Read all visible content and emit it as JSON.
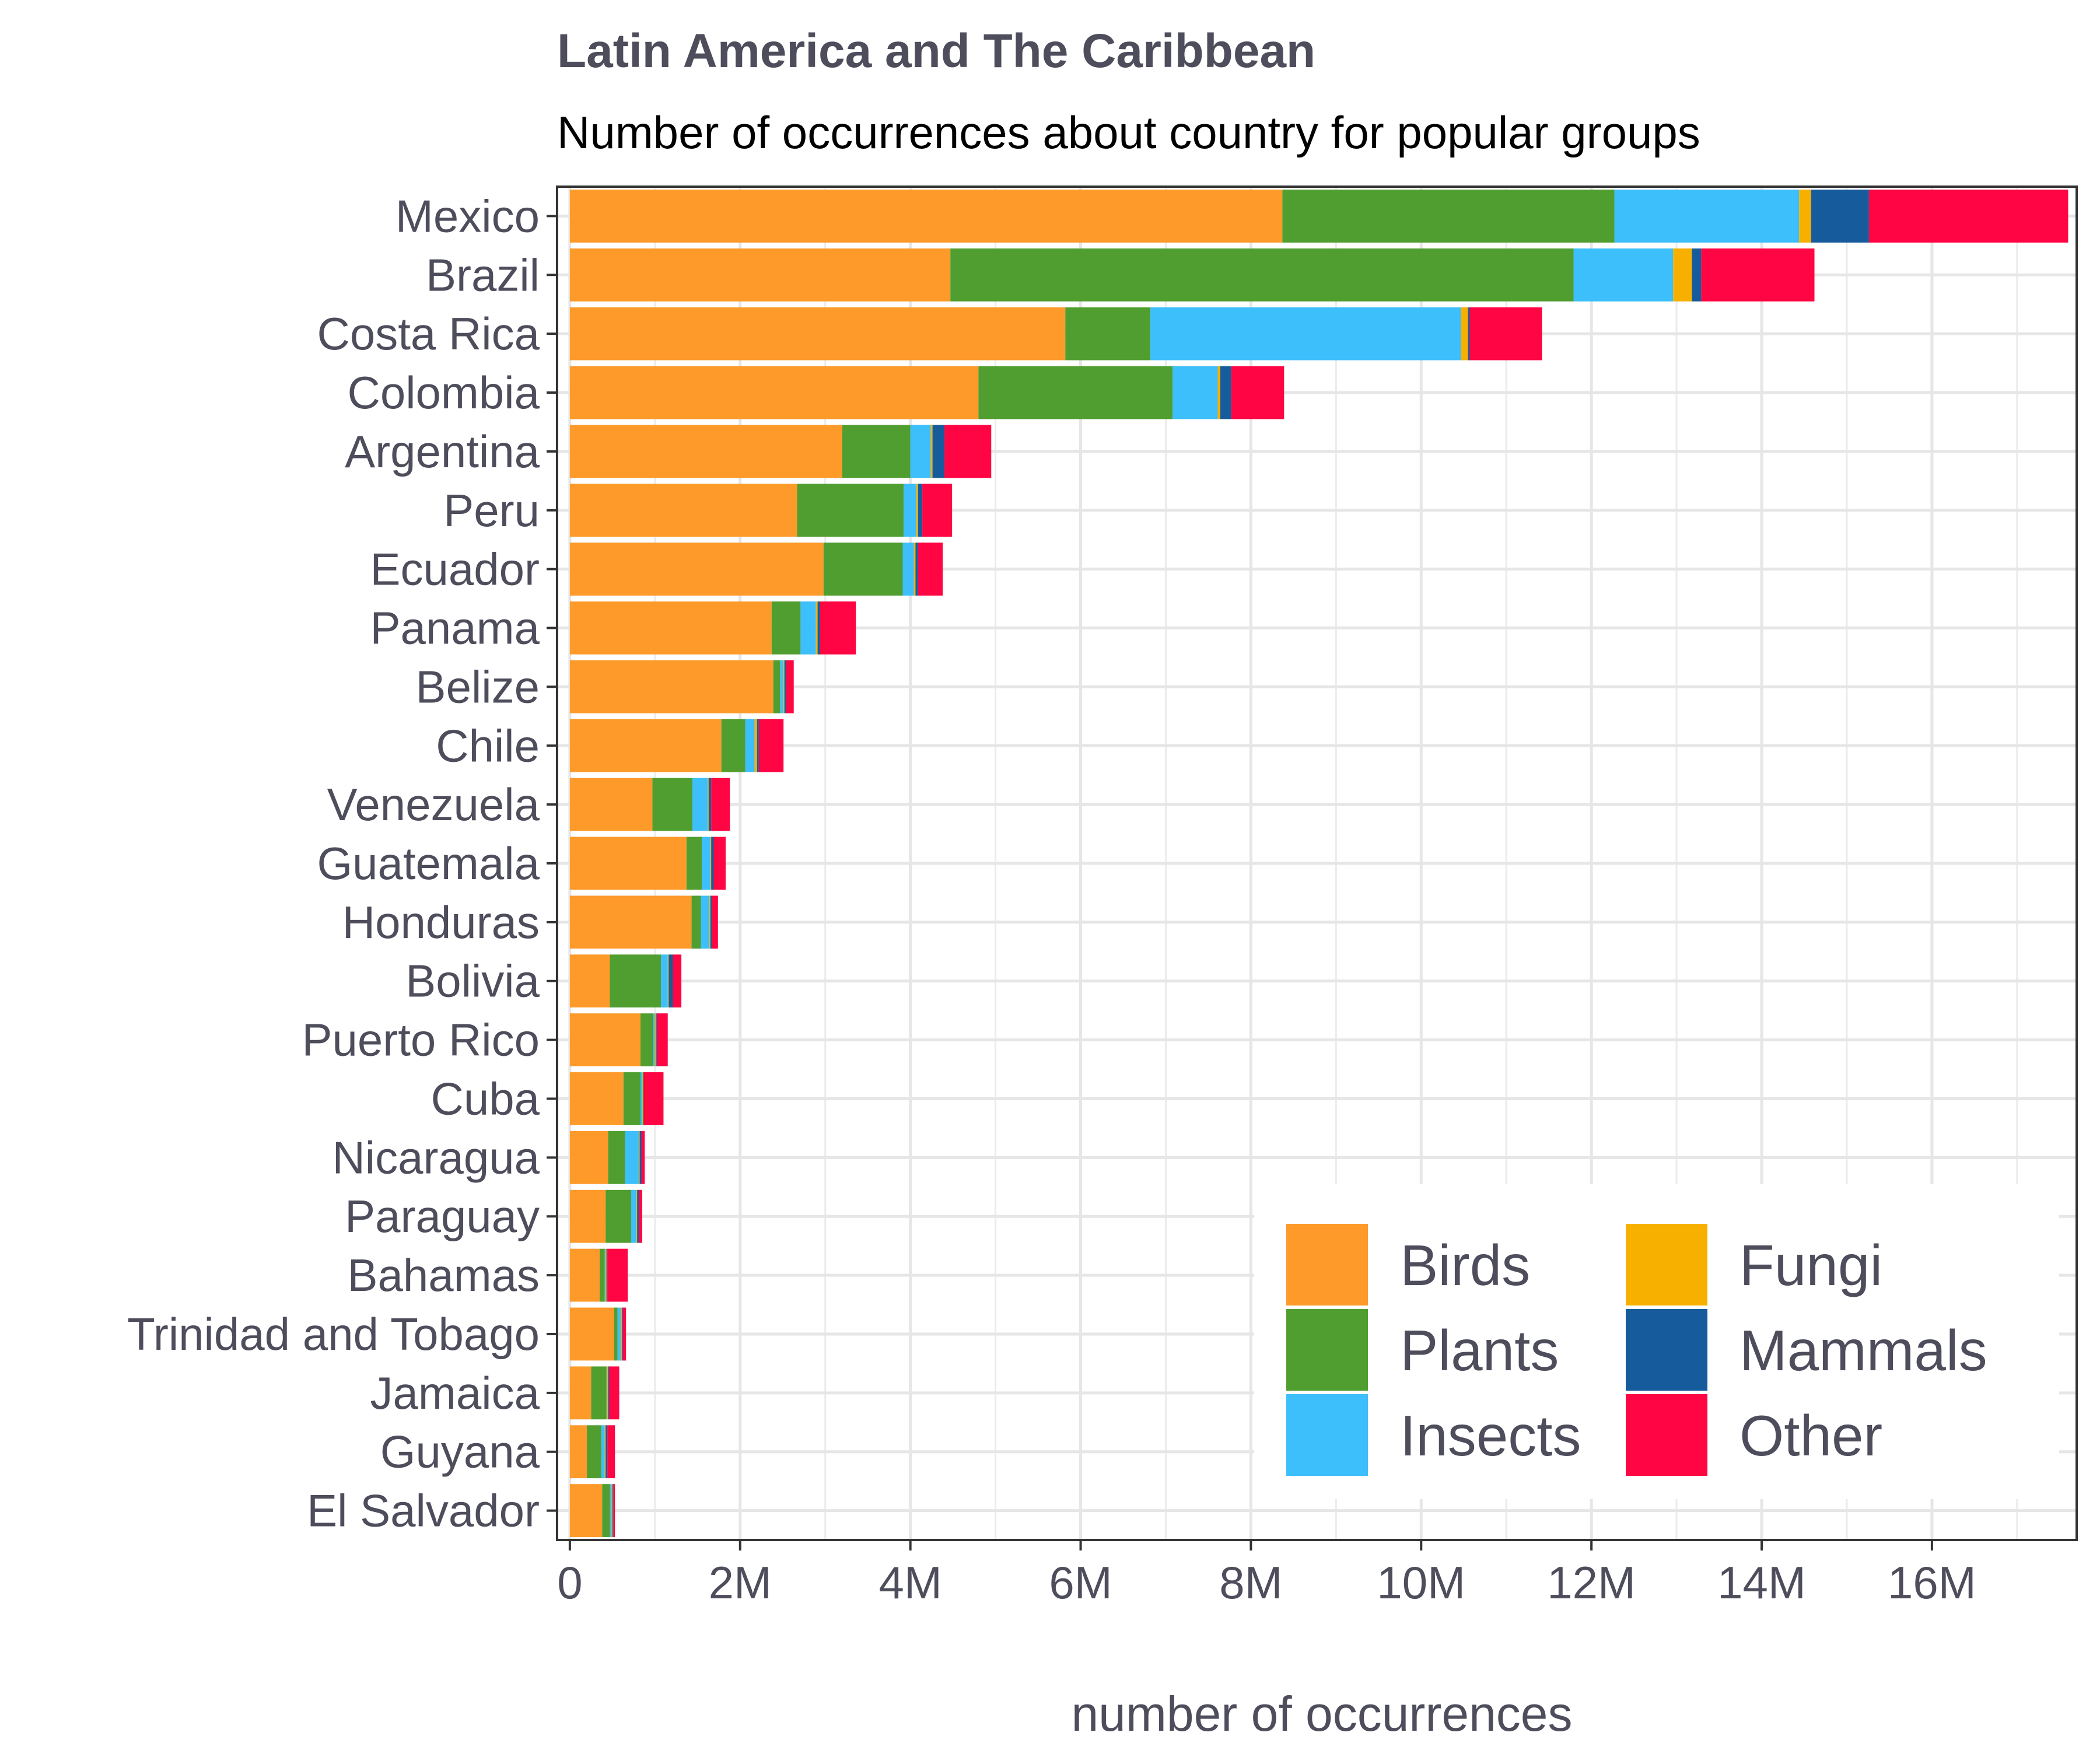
{
  "chart_data": {
    "type": "bar",
    "orientation": "horizontal",
    "stacked": true,
    "title": "Latin America and The Caribbean",
    "subtitle": "Number of occurrences about country for popular groups",
    "xlabel": "number of occurrences",
    "ylabel": "",
    "xlim": [
      -0.15,
      17.7
    ],
    "x_unit": "M",
    "x_ticks": [
      {
        "value": 0,
        "label": "0"
      },
      {
        "value": 2,
        "label": "2M"
      },
      {
        "value": 4,
        "label": "4M"
      },
      {
        "value": 6,
        "label": "6M"
      },
      {
        "value": 8,
        "label": "8M"
      },
      {
        "value": 10,
        "label": "10M"
      },
      {
        "value": 12,
        "label": "12M"
      },
      {
        "value": 14,
        "label": "14M"
      },
      {
        "value": 16,
        "label": "16M"
      }
    ],
    "grid": true,
    "legend_position": "bottom-right",
    "legend_columns": 2,
    "categories": [
      "Mexico",
      "Brazil",
      "Costa Rica",
      "Colombia",
      "Argentina",
      "Peru",
      "Ecuador",
      "Panama",
      "Belize",
      "Chile",
      "Venezuela",
      "Guatemala",
      "Honduras",
      "Bolivia",
      "Puerto Rico",
      "Cuba",
      "Nicaragua",
      "Paraguay",
      "Bahamas",
      "Trinidad and Tobago",
      "Jamaica",
      "Guyana",
      "El Salvador"
    ],
    "series": [
      {
        "name": "Birds",
        "color": "#FD9A2A",
        "values": [
          8.37,
          4.47,
          5.82,
          4.8,
          3.2,
          2.67,
          2.98,
          2.37,
          2.39,
          1.78,
          0.97,
          1.37,
          1.43,
          0.47,
          0.83,
          0.63,
          0.45,
          0.42,
          0.35,
          0.52,
          0.25,
          0.2,
          0.38
        ]
      },
      {
        "name": "Plants",
        "color": "#509E2F",
        "values": [
          3.9,
          7.32,
          1.0,
          2.28,
          0.8,
          1.25,
          0.93,
          0.34,
          0.08,
          0.28,
          0.47,
          0.18,
          0.11,
          0.6,
          0.15,
          0.2,
          0.2,
          0.3,
          0.06,
          0.04,
          0.18,
          0.17,
          0.09
        ]
      },
      {
        "name": "Insects",
        "color": "#3CBFFA",
        "values": [
          2.17,
          1.17,
          3.65,
          0.53,
          0.24,
          0.15,
          0.13,
          0.18,
          0.04,
          0.11,
          0.18,
          0.1,
          0.1,
          0.08,
          0.02,
          0.02,
          0.16,
          0.06,
          0.01,
          0.04,
          0.01,
          0.04,
          0.02
        ]
      },
      {
        "name": "Fungi",
        "color": "#F7B000",
        "values": [
          0.14,
          0.22,
          0.08,
          0.03,
          0.02,
          0.02,
          0.02,
          0.02,
          0.01,
          0.03,
          0.01,
          0.01,
          0.01,
          0.01,
          0.01,
          0.01,
          0.01,
          0.01,
          0.01,
          0.01,
          0.01,
          0.01,
          0.01
        ]
      },
      {
        "name": "Mammals",
        "color": "#165C9C",
        "values": [
          0.68,
          0.11,
          0.02,
          0.13,
          0.14,
          0.05,
          0.03,
          0.03,
          0.02,
          0.02,
          0.03,
          0.03,
          0.02,
          0.05,
          0.01,
          0.01,
          0.02,
          0.02,
          0.01,
          0.01,
          0.01,
          0.02,
          0.01
        ]
      },
      {
        "name": "Other",
        "color": "#FF0543",
        "values": [
          2.34,
          1.33,
          0.85,
          0.62,
          0.55,
          0.35,
          0.29,
          0.42,
          0.09,
          0.29,
          0.22,
          0.14,
          0.07,
          0.1,
          0.13,
          0.23,
          0.04,
          0.04,
          0.24,
          0.04,
          0.12,
          0.09,
          0.02
        ]
      }
    ]
  }
}
